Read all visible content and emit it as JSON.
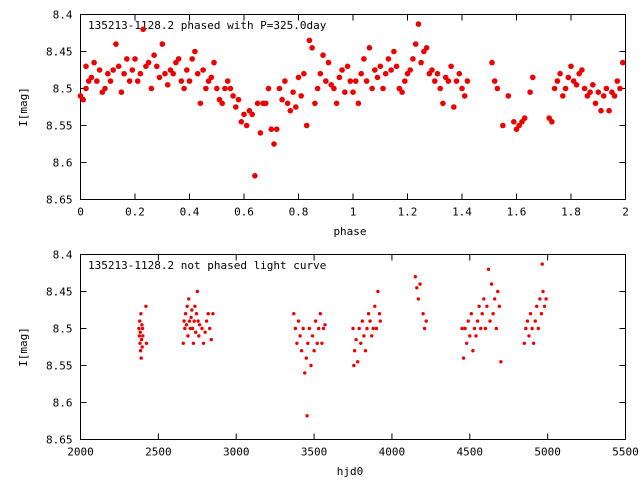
{
  "colors": {
    "points": "#ee0000",
    "axis": "#000000",
    "background": "#ffffff"
  },
  "chart_data": [
    {
      "type": "scatter",
      "title": "135213-1128.2 phased with P=325.0day",
      "xlabel": "phase",
      "ylabel": "I[mag]",
      "xlim": [
        0,
        2
      ],
      "ylim": [
        8.4,
        8.65
      ],
      "y_inverted": true,
      "xticks": [
        "0",
        "0.2",
        "0.4",
        "0.6",
        "0.8",
        "1",
        "1.2",
        "1.4",
        "1.6",
        "1.8",
        "2"
      ],
      "yticks": [
        "8.4",
        "8.45",
        "8.5",
        "8.55",
        "8.6",
        "8.65"
      ],
      "grid": false,
      "marker": "filled-circle-large",
      "points": [
        [
          0.0,
          8.51
        ],
        [
          0.01,
          8.515
        ],
        [
          0.02,
          8.47
        ],
        [
          0.02,
          8.5
        ],
        [
          0.03,
          8.49
        ],
        [
          0.04,
          8.485
        ],
        [
          0.05,
          8.465
        ],
        [
          0.06,
          8.49
        ],
        [
          0.07,
          8.475
        ],
        [
          0.08,
          8.505
        ],
        [
          0.09,
          8.5
        ],
        [
          0.1,
          8.48
        ],
        [
          0.11,
          8.49
        ],
        [
          0.12,
          8.475
        ],
        [
          0.13,
          8.44
        ],
        [
          0.14,
          8.47
        ],
        [
          0.15,
          8.505
        ],
        [
          0.16,
          8.48
        ],
        [
          0.17,
          8.46
        ],
        [
          0.18,
          8.49
        ],
        [
          0.19,
          8.475
        ],
        [
          0.2,
          8.46
        ],
        [
          0.21,
          8.49
        ],
        [
          0.22,
          8.48
        ],
        [
          0.23,
          8.42
        ],
        [
          0.24,
          8.47
        ],
        [
          0.25,
          8.465
        ],
        [
          0.26,
          8.5
        ],
        [
          0.27,
          8.455
        ],
        [
          0.28,
          8.47
        ],
        [
          0.29,
          8.485
        ],
        [
          0.3,
          8.44
        ],
        [
          0.31,
          8.48
        ],
        [
          0.32,
          8.495
        ],
        [
          0.33,
          8.475
        ],
        [
          0.34,
          8.48
        ],
        [
          0.35,
          8.465
        ],
        [
          0.36,
          8.46
        ],
        [
          0.37,
          8.49
        ],
        [
          0.38,
          8.5
        ],
        [
          0.39,
          8.475
        ],
        [
          0.4,
          8.49
        ],
        [
          0.41,
          8.46
        ],
        [
          0.42,
          8.45
        ],
        [
          0.43,
          8.48
        ],
        [
          0.44,
          8.52
        ],
        [
          0.45,
          8.475
        ],
        [
          0.46,
          8.5
        ],
        [
          0.47,
          8.49
        ],
        [
          0.48,
          8.485
        ],
        [
          0.49,
          8.465
        ],
        [
          0.5,
          8.5
        ],
        [
          0.51,
          8.515
        ],
        [
          0.52,
          8.52
        ],
        [
          0.53,
          8.5
        ],
        [
          0.54,
          8.49
        ],
        [
          0.55,
          8.5
        ],
        [
          0.56,
          8.51
        ],
        [
          0.57,
          8.525
        ],
        [
          0.58,
          8.515
        ],
        [
          0.59,
          8.545
        ],
        [
          0.6,
          8.535
        ],
        [
          0.61,
          8.55
        ],
        [
          0.62,
          8.53
        ],
        [
          0.63,
          8.535
        ],
        [
          0.64,
          8.618
        ],
        [
          0.65,
          8.52
        ],
        [
          0.66,
          8.56
        ],
        [
          0.67,
          8.52
        ],
        [
          0.68,
          8.52
        ],
        [
          0.69,
          8.5
        ],
        [
          0.7,
          8.555
        ],
        [
          0.71,
          8.575
        ],
        [
          0.72,
          8.555
        ],
        [
          0.73,
          8.5
        ],
        [
          0.74,
          8.515
        ],
        [
          0.75,
          8.49
        ],
        [
          0.76,
          8.52
        ],
        [
          0.77,
          8.53
        ],
        [
          0.78,
          8.505
        ],
        [
          0.79,
          8.525
        ],
        [
          0.8,
          8.485
        ],
        [
          0.81,
          8.51
        ],
        [
          0.82,
          8.48
        ],
        [
          0.83,
          8.55
        ],
        [
          0.84,
          8.435
        ],
        [
          0.85,
          8.445
        ],
        [
          0.86,
          8.52
        ],
        [
          0.87,
          8.5
        ],
        [
          0.88,
          8.48
        ],
        [
          0.89,
          8.455
        ],
        [
          0.9,
          8.49
        ],
        [
          0.91,
          8.465
        ],
        [
          0.92,
          8.495
        ],
        [
          0.93,
          8.5
        ],
        [
          0.94,
          8.52
        ],
        [
          0.95,
          8.485
        ],
        [
          0.96,
          8.475
        ],
        [
          0.97,
          8.505
        ],
        [
          0.98,
          8.47
        ],
        [
          0.99,
          8.49
        ],
        [
          1.0,
          8.505
        ],
        [
          1.01,
          8.49
        ],
        [
          1.02,
          8.52
        ],
        [
          1.03,
          8.48
        ],
        [
          1.04,
          8.46
        ],
        [
          1.05,
          8.49
        ],
        [
          1.06,
          8.445
        ],
        [
          1.07,
          8.5
        ],
        [
          1.08,
          8.475
        ],
        [
          1.09,
          8.485
        ],
        [
          1.1,
          8.47
        ],
        [
          1.11,
          8.5
        ],
        [
          1.12,
          8.48
        ],
        [
          1.13,
          8.46
        ],
        [
          1.14,
          8.475
        ],
        [
          1.15,
          8.45
        ],
        [
          1.16,
          8.47
        ],
        [
          1.17,
          8.5
        ],
        [
          1.18,
          8.505
        ],
        [
          1.19,
          8.49
        ],
        [
          1.2,
          8.48
        ],
        [
          1.21,
          8.475
        ],
        [
          1.22,
          8.46
        ],
        [
          1.23,
          8.44
        ],
        [
          1.24,
          8.413
        ],
        [
          1.25,
          8.465
        ],
        [
          1.26,
          8.45
        ],
        [
          1.27,
          8.445
        ],
        [
          1.28,
          8.48
        ],
        [
          1.29,
          8.475
        ],
        [
          1.3,
          8.49
        ],
        [
          1.31,
          8.48
        ],
        [
          1.32,
          8.5
        ],
        [
          1.33,
          8.52
        ],
        [
          1.34,
          8.485
        ],
        [
          1.35,
          8.49
        ],
        [
          1.36,
          8.47
        ],
        [
          1.37,
          8.525
        ],
        [
          1.38,
          8.49
        ],
        [
          1.39,
          8.48
        ],
        [
          1.4,
          8.5
        ],
        [
          1.41,
          8.51
        ],
        [
          1.42,
          8.49
        ],
        [
          1.51,
          8.465
        ],
        [
          1.52,
          8.49
        ],
        [
          1.53,
          8.5
        ],
        [
          1.55,
          8.55
        ],
        [
          1.57,
          8.51
        ],
        [
          1.59,
          8.545
        ],
        [
          1.6,
          8.555
        ],
        [
          1.61,
          8.55
        ],
        [
          1.62,
          8.545
        ],
        [
          1.63,
          8.54
        ],
        [
          1.65,
          8.505
        ],
        [
          1.66,
          8.485
        ],
        [
          1.72,
          8.54
        ],
        [
          1.73,
          8.545
        ],
        [
          1.74,
          8.5
        ],
        [
          1.75,
          8.49
        ],
        [
          1.76,
          8.48
        ],
        [
          1.77,
          8.51
        ],
        [
          1.78,
          8.5
        ],
        [
          1.79,
          8.485
        ],
        [
          1.8,
          8.47
        ],
        [
          1.81,
          8.49
        ],
        [
          1.82,
          8.495
        ],
        [
          1.83,
          8.48
        ],
        [
          1.84,
          8.475
        ],
        [
          1.85,
          8.5
        ],
        [
          1.86,
          8.51
        ],
        [
          1.87,
          8.505
        ],
        [
          1.88,
          8.495
        ],
        [
          1.89,
          8.52
        ],
        [
          1.9,
          8.505
        ],
        [
          1.91,
          8.53
        ],
        [
          1.92,
          8.51
        ],
        [
          1.93,
          8.5
        ],
        [
          1.94,
          8.53
        ],
        [
          1.95,
          8.505
        ],
        [
          1.96,
          8.51
        ],
        [
          1.97,
          8.49
        ],
        [
          1.98,
          8.5
        ],
        [
          1.99,
          8.465
        ]
      ]
    },
    {
      "type": "scatter",
      "title": "135213-1128.2 not phased light curve",
      "xlabel": "hjd0",
      "ylabel": "I[mag]",
      "xlim": [
        2000,
        5500
      ],
      "ylim": [
        8.4,
        8.65
      ],
      "y_inverted": true,
      "xticks": [
        "2000",
        "2500",
        "3000",
        "3500",
        "4000",
        "4500",
        "5000",
        "5500"
      ],
      "yticks": [
        "8.4",
        "8.45",
        "8.5",
        "8.55",
        "8.6",
        "8.65"
      ],
      "grid": false,
      "marker": "filled-circle-small",
      "points": [
        [
          2375,
          8.5
        ],
        [
          2378,
          8.51
        ],
        [
          2380,
          8.49
        ],
        [
          2382,
          8.52
        ],
        [
          2384,
          8.505
        ],
        [
          2386,
          8.53
        ],
        [
          2388,
          8.48
        ],
        [
          2390,
          8.54
        ],
        [
          2392,
          8.515
        ],
        [
          2394,
          8.495
        ],
        [
          2396,
          8.525
        ],
        [
          2398,
          8.5
        ],
        [
          2400,
          8.51
        ],
        [
          2420,
          8.47
        ],
        [
          2424,
          8.52
        ],
        [
          2660,
          8.52
        ],
        [
          2665,
          8.49
        ],
        [
          2670,
          8.5
        ],
        [
          2675,
          8.48
        ],
        [
          2680,
          8.495
        ],
        [
          2685,
          8.47
        ],
        [
          2690,
          8.51
        ],
        [
          2695,
          8.46
        ],
        [
          2700,
          8.49
        ],
        [
          2705,
          8.5
        ],
        [
          2710,
          8.485
        ],
        [
          2715,
          8.475
        ],
        [
          2720,
          8.5
        ],
        [
          2725,
          8.52
        ],
        [
          2730,
          8.49
        ],
        [
          2735,
          8.47
        ],
        [
          2740,
          8.505
        ],
        [
          2745,
          8.48
        ],
        [
          2750,
          8.45
        ],
        [
          2755,
          8.49
        ],
        [
          2760,
          8.51
        ],
        [
          2765,
          8.495
        ],
        [
          2780,
          8.5
        ],
        [
          2790,
          8.52
        ],
        [
          2800,
          8.505
        ],
        [
          2810,
          8.49
        ],
        [
          2820,
          8.48
        ],
        [
          2830,
          8.5
        ],
        [
          2840,
          8.515
        ],
        [
          2850,
          8.48
        ],
        [
          3370,
          8.48
        ],
        [
          3380,
          8.5
        ],
        [
          3390,
          8.52
        ],
        [
          3400,
          8.49
        ],
        [
          3410,
          8.51
        ],
        [
          3420,
          8.53
        ],
        [
          3430,
          8.5
        ],
        [
          3440,
          8.56
        ],
        [
          3450,
          8.54
        ],
        [
          3455,
          8.618
        ],
        [
          3460,
          8.52
        ],
        [
          3470,
          8.5
        ],
        [
          3480,
          8.55
        ],
        [
          3490,
          8.51
        ],
        [
          3500,
          8.53
        ],
        [
          3510,
          8.49
        ],
        [
          3520,
          8.52
        ],
        [
          3530,
          8.5
        ],
        [
          3540,
          8.48
        ],
        [
          3550,
          8.52
        ],
        [
          3560,
          8.5
        ],
        [
          3570,
          8.495
        ],
        [
          3750,
          8.5
        ],
        [
          3755,
          8.55
        ],
        [
          3760,
          8.53
        ],
        [
          3770,
          8.515
        ],
        [
          3780,
          8.545
        ],
        [
          3790,
          8.5
        ],
        [
          3800,
          8.52
        ],
        [
          3810,
          8.49
        ],
        [
          3820,
          8.51
        ],
        [
          3830,
          8.53
        ],
        [
          3840,
          8.5
        ],
        [
          3850,
          8.48
        ],
        [
          3860,
          8.49
        ],
        [
          3870,
          8.51
        ],
        [
          3880,
          8.5
        ],
        [
          3890,
          8.47
        ],
        [
          3900,
          8.5
        ],
        [
          3910,
          8.45
        ],
        [
          3920,
          8.48
        ],
        [
          3925,
          8.49
        ],
        [
          4150,
          8.43
        ],
        [
          4160,
          8.445
        ],
        [
          4170,
          8.46
        ],
        [
          4180,
          8.44
        ],
        [
          4200,
          8.48
        ],
        [
          4210,
          8.5
        ],
        [
          4220,
          8.49
        ],
        [
          4450,
          8.5
        ],
        [
          4460,
          8.54
        ],
        [
          4470,
          8.5
        ],
        [
          4480,
          8.52
        ],
        [
          4490,
          8.49
        ],
        [
          4500,
          8.51
        ],
        [
          4510,
          8.48
        ],
        [
          4520,
          8.53
        ],
        [
          4530,
          8.5
        ],
        [
          4540,
          8.51
        ],
        [
          4550,
          8.49
        ],
        [
          4560,
          8.47
        ],
        [
          4570,
          8.5
        ],
        [
          4580,
          8.48
        ],
        [
          4590,
          8.46
        ],
        [
          4600,
          8.5
        ],
        [
          4610,
          8.47
        ],
        [
          4620,
          8.42
        ],
        [
          4630,
          8.49
        ],
        [
          4640,
          8.44
        ],
        [
          4650,
          8.48
        ],
        [
          4660,
          8.46
        ],
        [
          4670,
          8.5
        ],
        [
          4680,
          8.45
        ],
        [
          4690,
          8.47
        ],
        [
          4700,
          8.545
        ],
        [
          4850,
          8.52
        ],
        [
          4860,
          8.5
        ],
        [
          4870,
          8.49
        ],
        [
          4880,
          8.51
        ],
        [
          4890,
          8.48
        ],
        [
          4900,
          8.5
        ],
        [
          4910,
          8.52
        ],
        [
          4920,
          8.49
        ],
        [
          4930,
          8.47
        ],
        [
          4940,
          8.5
        ],
        [
          4950,
          8.46
        ],
        [
          4960,
          8.48
        ],
        [
          4965,
          8.413
        ],
        [
          4970,
          8.45
        ],
        [
          4980,
          8.47
        ],
        [
          4990,
          8.46
        ]
      ]
    }
  ]
}
